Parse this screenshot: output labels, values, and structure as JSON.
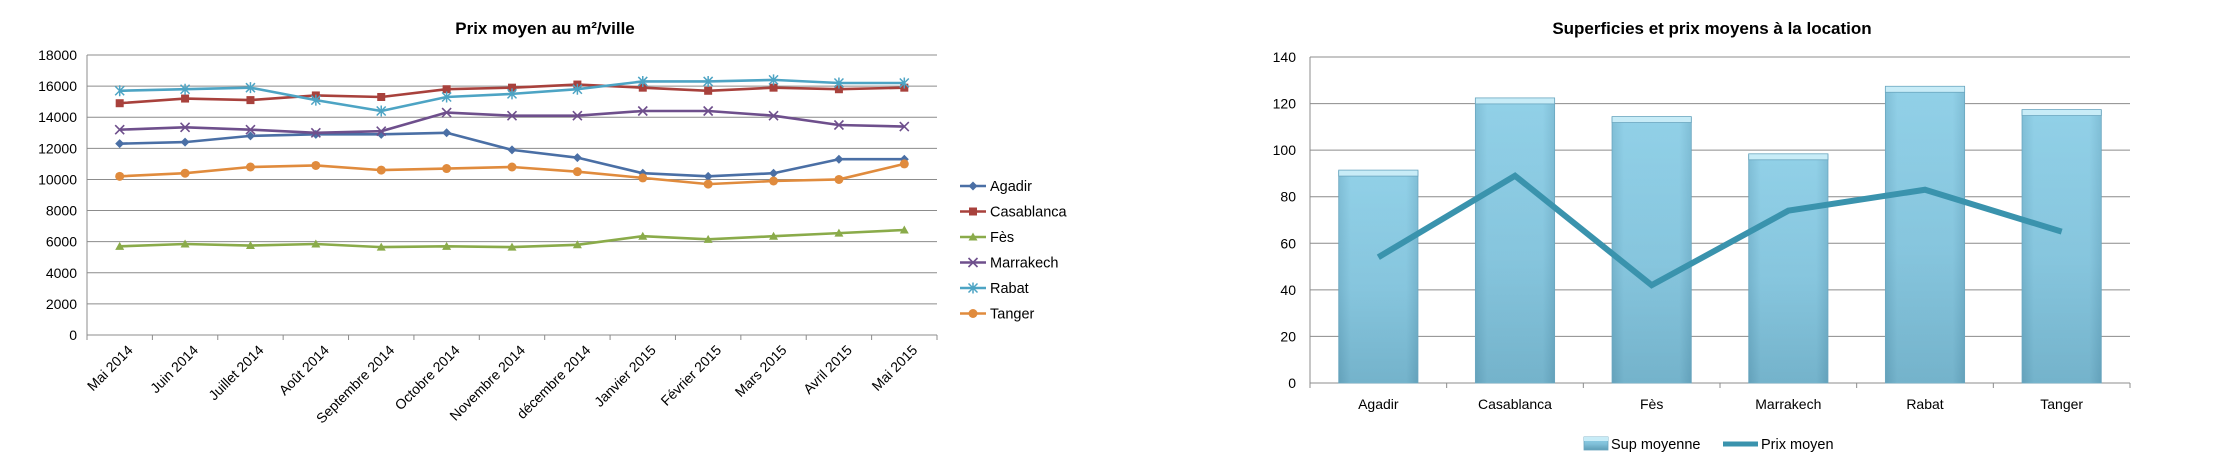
{
  "chart_data": [
    {
      "type": "line",
      "title": "Prix moyen au m²/ville",
      "categories": [
        "Mai 2014",
        "Juin 2014",
        "Juillet 2014",
        "Août 2014",
        "Septembre 2014",
        "Octobre 2014",
        "Novembre 2014",
        "décembre 2014",
        "Janvier 2015",
        "Février 2015",
        "Mars 2015",
        "Avril 2015",
        "Mai 2015"
      ],
      "ylim": [
        0,
        18000
      ],
      "yticks": [
        0,
        2000,
        4000,
        6000,
        8000,
        10000,
        12000,
        14000,
        16000,
        18000
      ],
      "grid": true,
      "legend_position": "right",
      "series": [
        {
          "name": "Agadir",
          "color": "#4a6fa5",
          "marker": "diamond",
          "values": [
            12300,
            12400,
            12800,
            12900,
            12900,
            13000,
            11900,
            11400,
            10400,
            10200,
            10400,
            11300,
            11300
          ]
        },
        {
          "name": "Casablanca",
          "color": "#a8413c",
          "marker": "square",
          "values": [
            14900,
            15200,
            15100,
            15400,
            15300,
            15800,
            15900,
            16100,
            15900,
            15700,
            15900,
            15800,
            15900
          ]
        },
        {
          "name": "Fès",
          "color": "#8aab4a",
          "marker": "triangle",
          "values": [
            5700,
            5850,
            5750,
            5850,
            5650,
            5700,
            5650,
            5800,
            6350,
            6150,
            6350,
            6550,
            6750
          ]
        },
        {
          "name": "Marrakech",
          "color": "#6e4f8c",
          "marker": "x",
          "values": [
            13200,
            13350,
            13200,
            13000,
            13100,
            14300,
            14100,
            14100,
            14400,
            14400,
            14100,
            13500,
            13400
          ]
        },
        {
          "name": "Rabat",
          "color": "#4da4c4",
          "marker": "asterisk",
          "values": [
            15700,
            15800,
            15900,
            15100,
            14400,
            15300,
            15500,
            15800,
            16300,
            16300,
            16400,
            16200,
            16200
          ]
        },
        {
          "name": "Tanger",
          "color": "#e08b3d",
          "marker": "circle",
          "values": [
            10200,
            10400,
            10800,
            10900,
            10600,
            10700,
            10800,
            10500,
            10100,
            9700,
            9900,
            10000,
            11000
          ]
        }
      ]
    },
    {
      "type": "bar",
      "title": "Superficies et prix moyens à la location",
      "categories": [
        "Agadir",
        "Casablanca",
        "Fès",
        "Marrakech",
        "Rabat",
        "Tanger"
      ],
      "ylim": [
        0,
        140
      ],
      "yticks": [
        0,
        20,
        40,
        60,
        80,
        100,
        120,
        140
      ],
      "grid": true,
      "legend_position": "bottom",
      "series": [
        {
          "name": "Sup moyenne",
          "kind": "bar",
          "color": "#86c8e0",
          "values": [
            91,
            122,
            114,
            98,
            127,
            117
          ]
        },
        {
          "name": "Prix moyen",
          "kind": "line",
          "color": "#3a93ad",
          "values": [
            54,
            89,
            42,
            74,
            83,
            65
          ]
        }
      ]
    }
  ]
}
